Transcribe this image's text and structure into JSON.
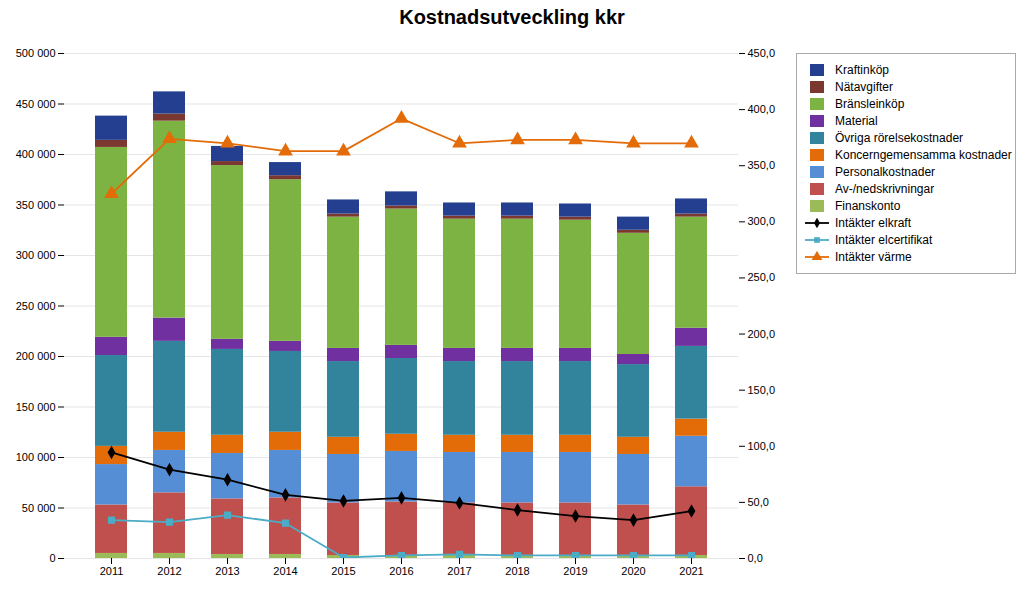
{
  "chart_data": {
    "type": "bar",
    "title": "Kostnadsutveckling kkr",
    "stacked": true,
    "grid": true,
    "legend": "upper right",
    "categories": [
      "2011",
      "2012",
      "2013",
      "2014",
      "2015",
      "2016",
      "2017",
      "2018",
      "2019",
      "2020",
      "2021"
    ],
    "ylim": [
      0,
      500000
    ],
    "yticks": [
      0,
      {
        "value": 50000,
        "label": "50 000"
      },
      {
        "value": 100000,
        "label": "100 000"
      },
      {
        "value": 150000,
        "label": "150 000"
      },
      {
        "value": 200000,
        "label": "200 000"
      },
      {
        "value": 250000,
        "label": "250 000"
      },
      {
        "value": 300000,
        "label": "300 000"
      },
      {
        "value": 350000,
        "label": "350 000"
      },
      {
        "value": 400000,
        "label": "400 000"
      },
      {
        "value": 450000,
        "label": "450 000"
      },
      {
        "value": 500000,
        "label": "500 000"
      }
    ],
    "y2lim": [
      0,
      450
    ],
    "y2ticks": [
      {
        "value": 0,
        "label": "0,0"
      },
      {
        "value": 50,
        "label": "50,0"
      },
      {
        "value": 100,
        "label": "100,0"
      },
      {
        "value": 150,
        "label": "150,0"
      },
      {
        "value": 200,
        "label": "200,0"
      },
      {
        "value": 250,
        "label": "250,0"
      },
      {
        "value": 300,
        "label": "300,0"
      },
      {
        "value": 350,
        "label": "350,0"
      },
      {
        "value": 400,
        "label": "400,0"
      },
      {
        "value": 450,
        "label": "450,0"
      }
    ],
    "series": [
      {
        "name": "Finanskonto",
        "type": "bar",
        "color": "#9BBB59",
        "values": [
          5000,
          5000,
          4000,
          4000,
          3000,
          3000,
          3000,
          3000,
          3000,
          3000,
          3000
        ]
      },
      {
        "name": "Av-/nedskrivningar",
        "type": "bar",
        "color": "#C0504D",
        "values": [
          48000,
          60000,
          55000,
          56000,
          52000,
          53000,
          52000,
          52000,
          52000,
          50000,
          68000
        ]
      },
      {
        "name": "Personalkostnader",
        "type": "bar",
        "color": "#558ED5",
        "values": [
          40000,
          42000,
          45000,
          47000,
          48000,
          50000,
          50000,
          50000,
          50000,
          50000,
          50000
        ]
      },
      {
        "name": "Koncerngemensamma kostnader",
        "type": "bar",
        "color": "#E36C09",
        "values": [
          18000,
          18000,
          18000,
          18000,
          17000,
          17000,
          17000,
          17000,
          17000,
          17000,
          17000
        ]
      },
      {
        "name": "Övriga rörelsekostnader",
        "type": "bar",
        "color": "#31849B",
        "values": [
          90000,
          90000,
          85000,
          80000,
          75000,
          75000,
          73000,
          73000,
          73000,
          72000,
          72000
        ]
      },
      {
        "name": "Material",
        "type": "bar",
        "color": "#7030A0",
        "values": [
          18000,
          23000,
          10000,
          10000,
          13000,
          13000,
          13000,
          13000,
          13000,
          10000,
          18000
        ]
      },
      {
        "name": "Bränsleinköp",
        "type": "bar",
        "color": "#7CB342",
        "values": [
          188000,
          195000,
          172000,
          160000,
          130000,
          135000,
          128000,
          128000,
          127000,
          120000,
          110000
        ]
      },
      {
        "name": "Nätavgifter",
        "type": "bar",
        "color": "#7B3830",
        "values": [
          7000,
          7000,
          4000,
          4000,
          3000,
          3000,
          3000,
          3000,
          3000,
          3000,
          3000
        ]
      },
      {
        "name": "Kraftinköp",
        "type": "bar",
        "color": "#243F8F",
        "values": [
          24000,
          22000,
          15000,
          13000,
          14000,
          14000,
          13000,
          13000,
          13000,
          13000,
          15000
        ]
      },
      {
        "name": "Intäkter elkraft",
        "type": "line",
        "color": "#000000",
        "marker": "diamond",
        "values": [
          105000,
          88000,
          78000,
          63000,
          57000,
          60000,
          55000,
          48000,
          42000,
          38000,
          47000
        ]
      },
      {
        "name": "Intäkter elcertifikat",
        "type": "line",
        "color": "#4BACC6",
        "marker": "square",
        "values": [
          38000,
          36000,
          43000,
          35000,
          1000,
          3000,
          4000,
          3000,
          3000,
          3000,
          3000
        ]
      },
      {
        "name": "Intäkter värme",
        "type": "line",
        "color": "#E36C09",
        "marker": "triangle",
        "axis": "y2",
        "values": [
          325,
          374,
          370,
          363,
          363,
          392,
          370,
          373,
          373,
          370,
          370
        ]
      }
    ]
  }
}
